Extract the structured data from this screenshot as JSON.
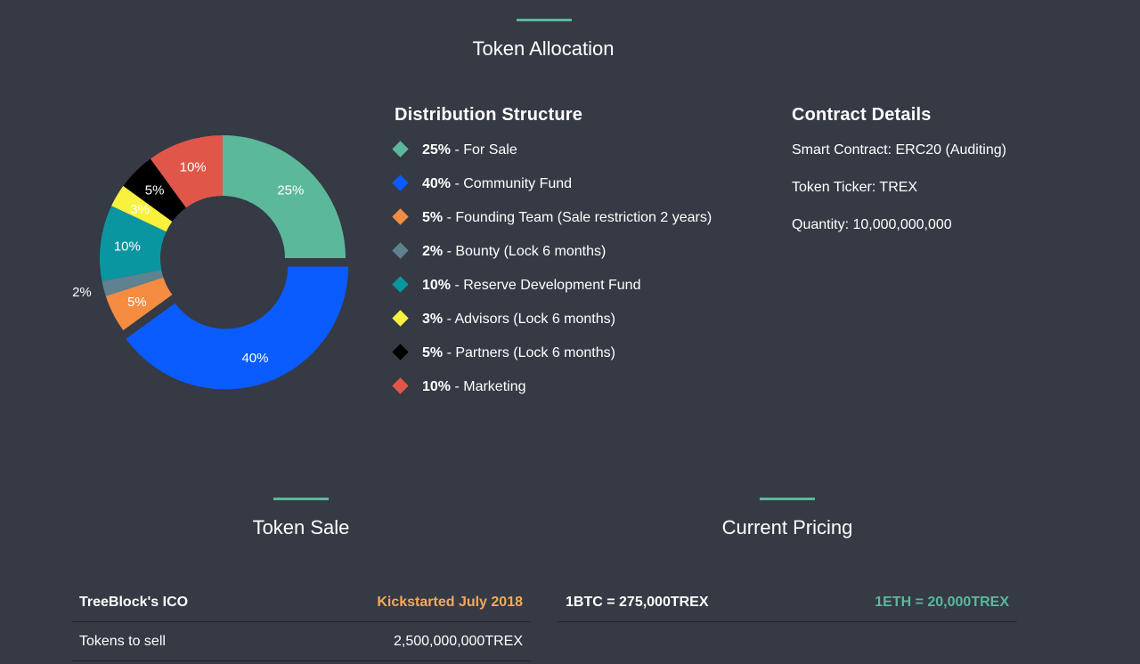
{
  "allocation": {
    "title": "Token Allocation"
  },
  "chart_data": {
    "type": "pie",
    "donut": true,
    "categories": [
      "For Sale",
      "Community Fund",
      "Founding Team",
      "Bounty",
      "Reserve Development Fund",
      "Advisors",
      "Partners",
      "Marketing"
    ],
    "values": [
      25,
      40,
      5,
      2,
      10,
      3,
      5,
      10
    ],
    "labels": [
      "25%",
      "40%",
      "5%",
      "2%",
      "10%",
      "3%",
      "5%",
      "10%"
    ],
    "colors": [
      "#5cb89a",
      "#0a5cff",
      "#f48c42",
      "#5f8290",
      "#0a96a0",
      "#f8f23e",
      "#000000",
      "#e0574a"
    ],
    "pulled_out_slice_index": 1,
    "title": "",
    "legend": "right"
  },
  "distribution": {
    "title": "Distribution Structure",
    "items": [
      {
        "pct": "25%",
        "text": " - For Sale",
        "color": "#5cb89a"
      },
      {
        "pct": "40%",
        "text": " - Community Fund",
        "color": "#0a5cff"
      },
      {
        "pct": "5%",
        "text": " - Founding Team (Sale restriction 2 years)",
        "color": "#f48c42"
      },
      {
        "pct": "2%",
        "text": " - Bounty (Lock 6 months)",
        "color": "#5f8290"
      },
      {
        "pct": "10%",
        "text": " - Reserve Development Fund",
        "color": "#0a96a0"
      },
      {
        "pct": "3%",
        "text": " - Advisors (Lock 6 months)",
        "color": "#f8f23e"
      },
      {
        "pct": "5%",
        "text": " - Partners (Lock 6 months)",
        "color": "#000000"
      },
      {
        "pct": "10%",
        "text": " - Marketing",
        "color": "#e0574a"
      }
    ]
  },
  "contract": {
    "title": "Contract Details",
    "rows": [
      {
        "label": "Smart Contract:",
        "value": " ERC20 (Auditing)"
      },
      {
        "label": "Token Ticker:",
        "value": " TREX"
      },
      {
        "label": "Quantity:",
        "value": " 10,000,000,000"
      }
    ]
  },
  "token_sale": {
    "title": "Token Sale",
    "header_left": "TreeBlock's ICO",
    "header_right": "Kickstarted July 2018",
    "row_label": "Tokens to sell",
    "row_value": "2,500,000,000TREX"
  },
  "pricing": {
    "title": "Current Pricing",
    "btc": "1BTC = 275,000TREX",
    "eth": "1ETH = 20,000TREX"
  }
}
